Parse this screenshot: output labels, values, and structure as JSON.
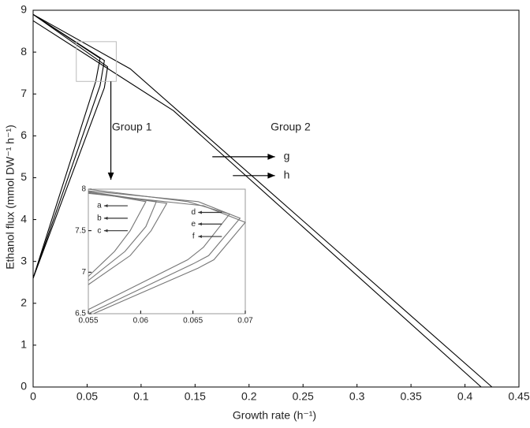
{
  "chart_data": [
    {
      "type": "line",
      "x_label": "Growth rate (h⁻¹)",
      "y_label": "Ethanol flux (mmol DW⁻¹ h⁻¹)",
      "xlim": [
        0,
        0.45
      ],
      "ylim": [
        0,
        9
      ],
      "xticks": [
        0,
        0.05,
        0.1,
        0.15,
        0.2,
        0.25,
        0.3,
        0.35,
        0.4,
        0.45
      ],
      "yticks": [
        0,
        1,
        2,
        3,
        4,
        5,
        6,
        7,
        8,
        9
      ],
      "annotations": [
        "Group 1",
        "Group 2"
      ],
      "series": [
        {
          "color": "#000000",
          "x": [
            0,
            0.058,
            0.062,
            0
          ],
          "values": [
            2.6,
            7.3,
            7.85,
            8.9
          ]
        },
        {
          "color": "#000000",
          "x": [
            0,
            0.062,
            0.066,
            0
          ],
          "values": [
            2.6,
            7.2,
            7.8,
            8.9
          ]
        },
        {
          "color": "#000000",
          "x": [
            0,
            0.066,
            0.069,
            0
          ],
          "values": [
            2.6,
            7.15,
            7.65,
            8.9
          ]
        },
        {
          "name": "g",
          "color": "#000000",
          "x": [
            0,
            0.09,
            0.425
          ],
          "values": [
            8.9,
            7.6,
            0
          ]
        },
        {
          "name": "h",
          "color": "#000000",
          "x": [
            0,
            0.13,
            0.415
          ],
          "values": [
            8.75,
            6.6,
            0
          ]
        }
      ]
    },
    {
      "type": "line",
      "xlim": [
        0.055,
        0.07
      ],
      "ylim": [
        6.5,
        8
      ],
      "xticks": [
        0.055,
        0.06,
        0.065,
        {
          "value": 0.07,
          "label": "0.07"
        }
      ],
      "yticks": [
        6.5,
        7,
        7.5,
        8
      ],
      "series": [
        {
          "name": "a",
          "color": "#777777",
          "x": [
            0.055,
            0.0605,
            0.059,
            0.0575,
            0.055
          ],
          "values": [
            7.97,
            7.85,
            7.5,
            7.25,
            6.95
          ]
        },
        {
          "name": "b",
          "color": "#777777",
          "x": [
            0.055,
            0.0615,
            0.0605,
            0.0585,
            0.055
          ],
          "values": [
            7.97,
            7.85,
            7.55,
            7.25,
            6.9
          ]
        },
        {
          "name": "c",
          "color": "#777777",
          "x": [
            0.055,
            0.0625,
            0.061,
            0.059,
            0.055
          ],
          "values": [
            7.96,
            7.83,
            7.5,
            7.2,
            6.85
          ]
        },
        {
          "name": "d",
          "color": "#777777",
          "x": [
            0.055,
            0.0645,
            0.0685,
            0.066,
            0.0645,
            0.055
          ],
          "values": [
            8.0,
            7.85,
            7.7,
            7.3,
            7.15,
            6.55
          ]
        },
        {
          "name": "e",
          "color": "#777777",
          "x": [
            0.055,
            0.0655,
            0.0695,
            0.0665,
            0.065,
            0.055
          ],
          "values": [
            7.98,
            7.85,
            7.65,
            7.2,
            7.1,
            6.5
          ]
        },
        {
          "name": "f",
          "color": "#777777",
          "x": [
            0.055,
            0.066,
            0.07,
            0.067,
            0.0655,
            0.0555
          ],
          "values": [
            7.95,
            7.8,
            7.6,
            7.15,
            7.05,
            6.5
          ]
        }
      ]
    }
  ]
}
